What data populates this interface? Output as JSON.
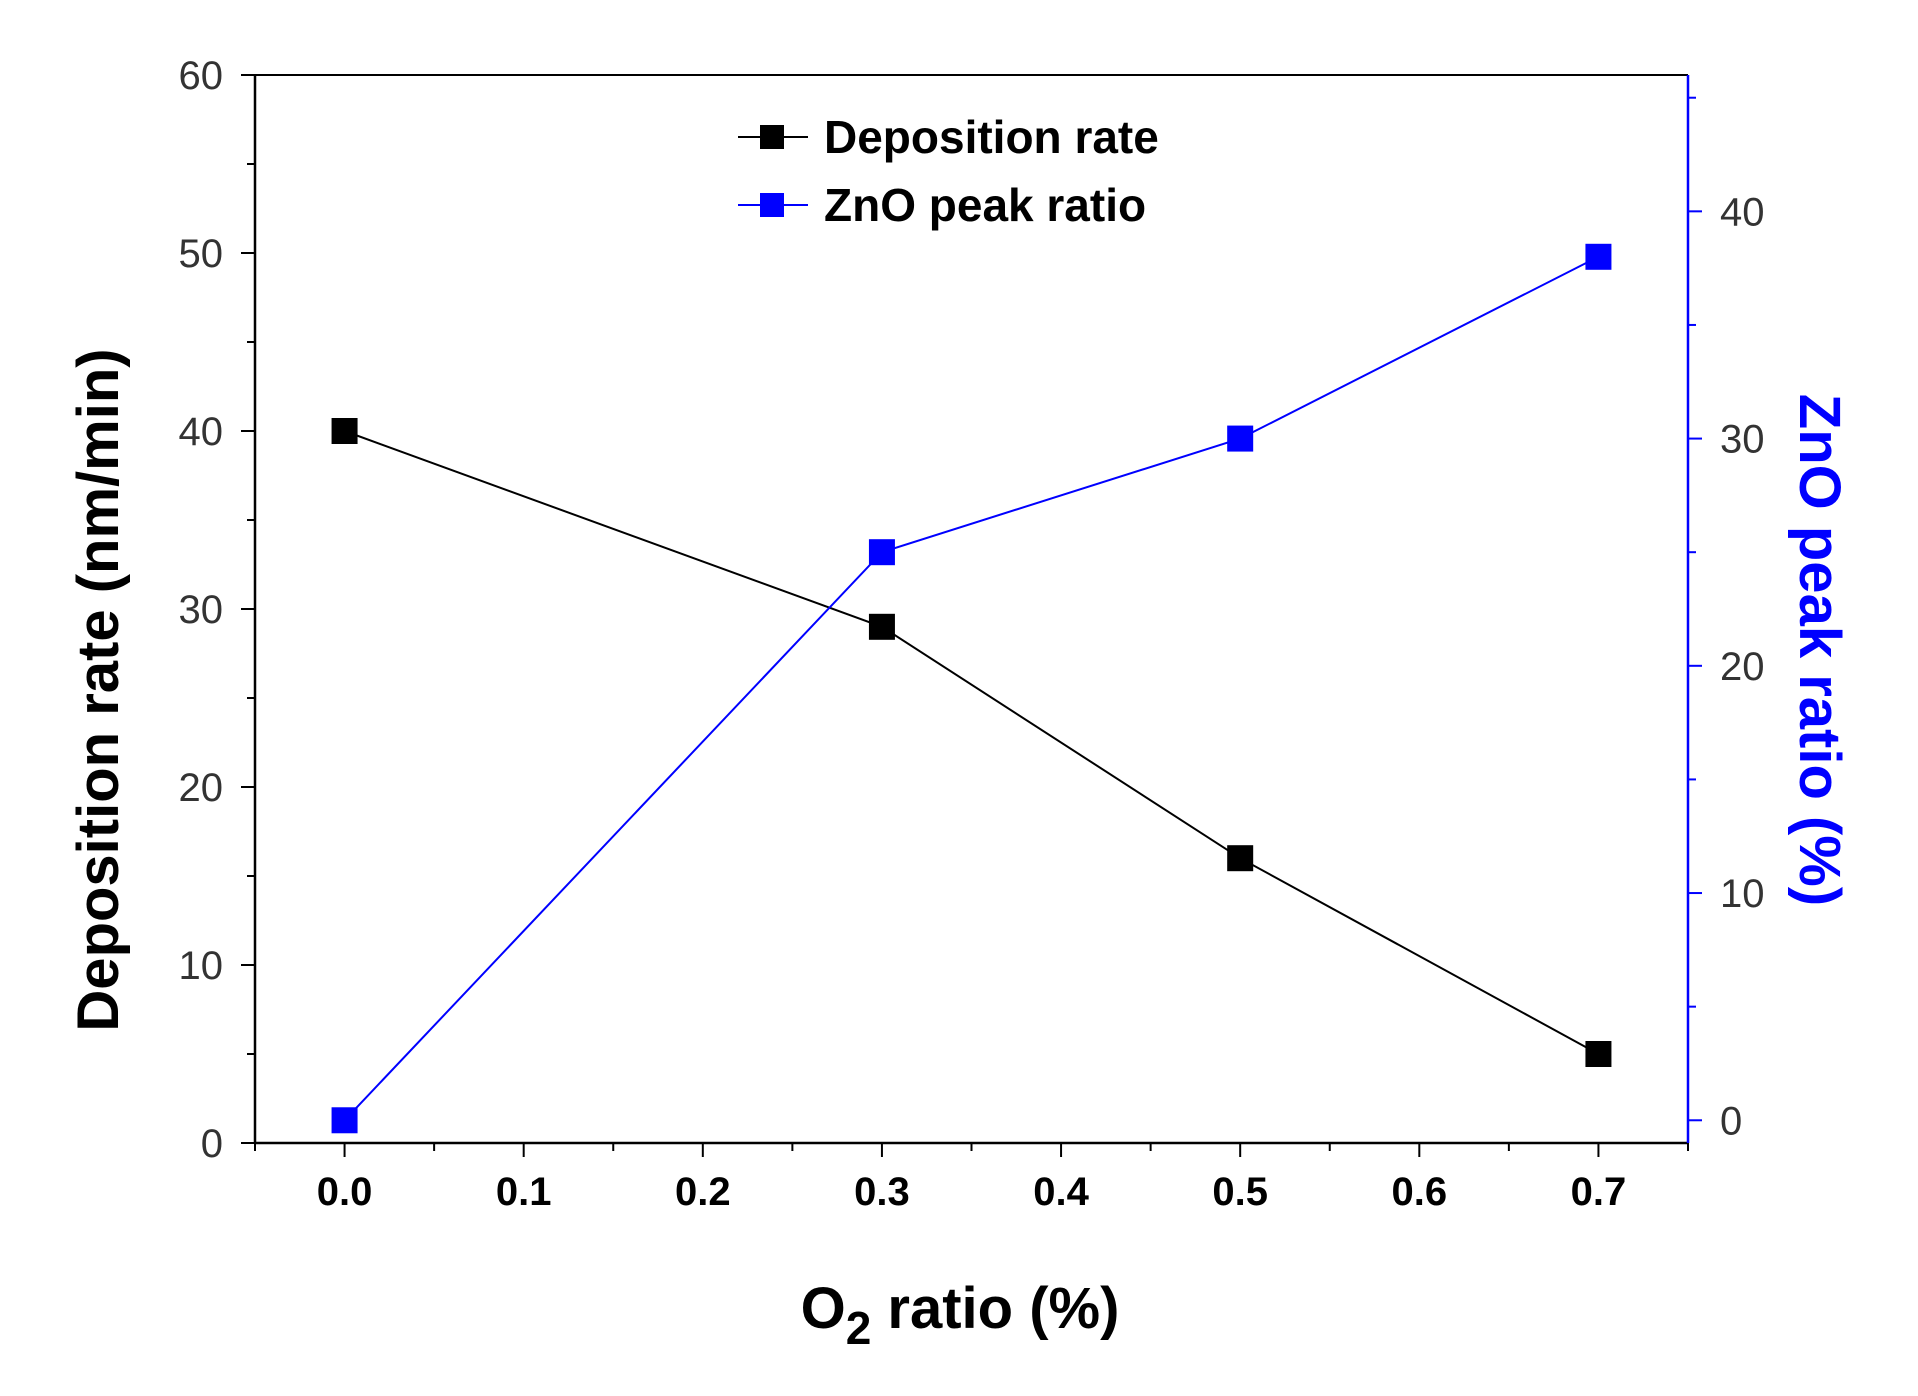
{
  "chart_data": {
    "type": "line",
    "title": "",
    "x": [
      0.0,
      0.3,
      0.5,
      0.7
    ],
    "xlabel": {
      "main": "O",
      "sub": "2",
      "rest": " ratio (%)"
    },
    "xlim": [
      -0.05,
      0.75
    ],
    "xticks": [
      0.0,
      0.1,
      0.2,
      0.3,
      0.4,
      0.5,
      0.6,
      0.7
    ],
    "xtick_labels": [
      "0.0",
      "0.1",
      "0.2",
      "0.3",
      "0.4",
      "0.5",
      "0.6",
      "0.7"
    ],
    "ylabel_left": "Deposition rate (nm/min)",
    "ylim_left": [
      0,
      60
    ],
    "yticks_left": [
      "0",
      "10",
      "20",
      "30",
      "40",
      "50",
      "60"
    ],
    "ylabel_right": "ZnO peak ratio (%)",
    "ylim_right": [
      -1.0,
      46.0
    ],
    "yticks_right": [
      "0",
      "10",
      "20",
      "30",
      "40"
    ],
    "legend_position": "top-center",
    "grid": false,
    "series": [
      {
        "name": "Deposition rate",
        "axis": "left",
        "color": "#000000",
        "values": [
          40,
          29,
          16,
          5
        ]
      },
      {
        "name": "ZnO peak ratio",
        "axis": "right",
        "color": "#0000ff",
        "values": [
          0,
          25,
          30,
          38
        ]
      }
    ]
  }
}
